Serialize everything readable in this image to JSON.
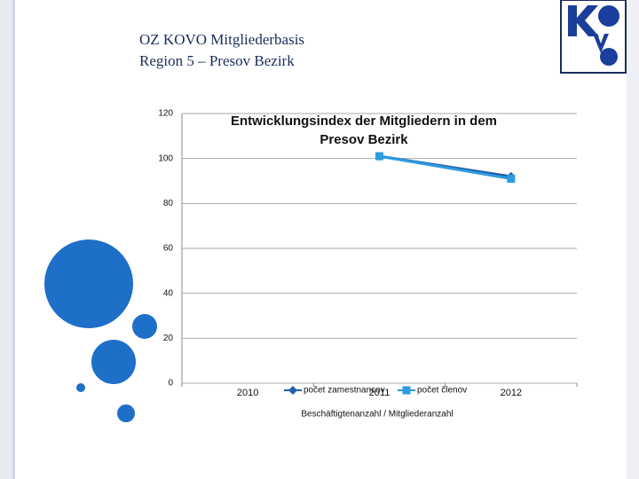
{
  "slide": {
    "title_lines": [
      "OZ KOVO Mitgliederbasis",
      "Region 5 – Presov Bezirk"
    ]
  },
  "chart_data": {
    "type": "line",
    "title_lines": [
      "Entwicklungsindex der Mitgliedern in dem",
      "Presov  Bezirk"
    ],
    "x_label": "Beschäftigtenanzahl / Mitgliederanzahl",
    "categories": [
      "2010",
      "2011",
      "2012"
    ],
    "series": [
      {
        "name": "počet zamestnancov",
        "color": "#1f5fa8",
        "marker": "diamond",
        "values": [
          null,
          101,
          92
        ]
      },
      {
        "name": "počet členov",
        "color": "#2e9be0",
        "marker": "square",
        "values": [
          null,
          101,
          91
        ]
      }
    ],
    "ylim": [
      0,
      120
    ],
    "yticks": [
      0,
      20,
      40,
      60,
      80,
      100,
      120
    ],
    "grid": true
  }
}
